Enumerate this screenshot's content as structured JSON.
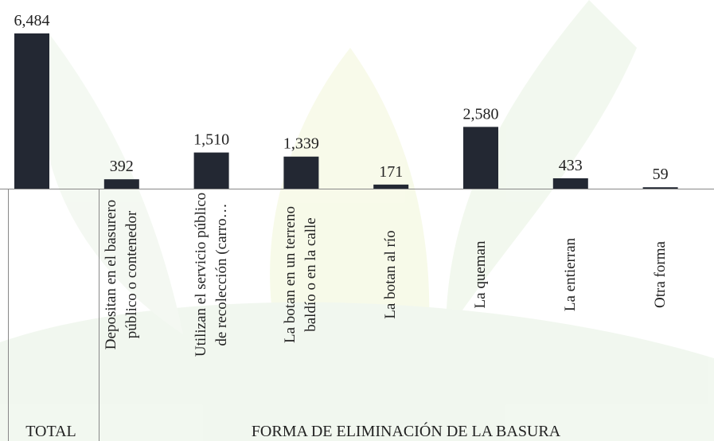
{
  "chart_data": {
    "type": "bar",
    "categories": [
      "TOTAL",
      "Depositan en el basurero público o contenedor",
      "Utilizan el servicio público de recolección (carro…",
      "La botan en un terreno baldío o en la calle",
      "La botan al río",
      "La queman",
      "La entierran",
      "Otra forma"
    ],
    "values": [
      6484,
      392,
      1510,
      1339,
      171,
      2580,
      433,
      59
    ],
    "value_labels": [
      "6,484",
      "392",
      "1,510",
      "1,339",
      "171",
      "2,580",
      "433",
      "59"
    ],
    "groups": [
      "TOTAL",
      "FORMA DE ELIMINACIÓN DE LA BASURA"
    ],
    "color": "#232833"
  }
}
